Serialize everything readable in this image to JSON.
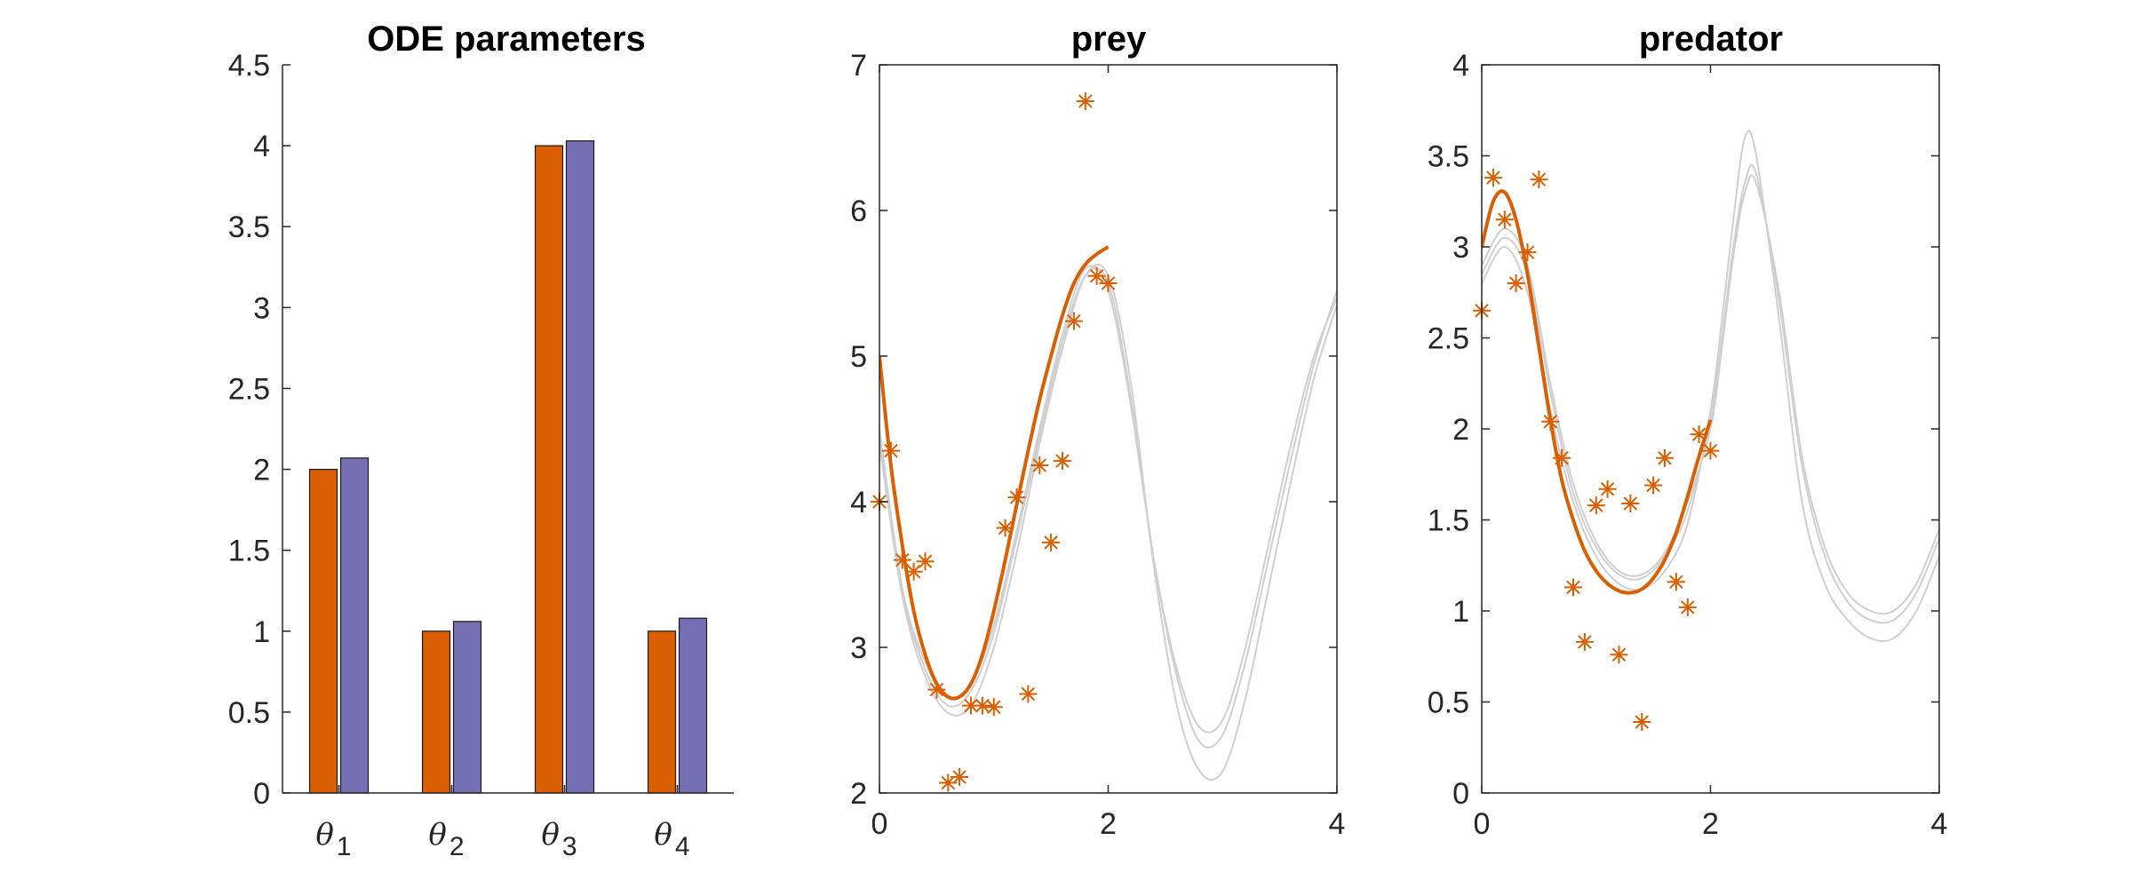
{
  "colors": {
    "true_bar": "#D95F02",
    "est_bar": "#7570B3",
    "fit": "#D95F02",
    "obs": "#D95F02",
    "samples": "#CFCFCF",
    "axis": "#262626"
  },
  "chart_data": [
    {
      "type": "bar",
      "title": "ODE parameters",
      "categories": [
        "θ1",
        "θ2",
        "θ3",
        "θ4"
      ],
      "category_symbol": "θ",
      "category_subscripts": [
        "1",
        "2",
        "3",
        "4"
      ],
      "series": [
        {
          "values": [
            2.0,
            1.0,
            4.0,
            1.0
          ]
        },
        {
          "values": [
            2.07,
            1.06,
            4.03,
            1.08
          ]
        }
      ],
      "ylim": [
        0,
        4.5
      ],
      "yticks": [
        "0",
        "0.5",
        "1",
        "1.5",
        "2",
        "2.5",
        "3",
        "3.5",
        "4",
        "4.5"
      ],
      "grid": false
    },
    {
      "type": "line",
      "title": "prey",
      "xlim": [
        0,
        4
      ],
      "ylim": [
        2,
        7
      ],
      "xticks": [
        "0",
        "2",
        "4"
      ],
      "yticks": [
        "2",
        "3",
        "4",
        "5",
        "6",
        "7"
      ],
      "grid": false,
      "series": [
        {
          "style": "fit",
          "x": [
            0,
            0.1,
            0.2,
            0.3,
            0.4,
            0.5,
            0.6,
            0.7,
            0.8,
            0.9,
            1.0,
            1.1,
            1.2,
            1.3,
            1.4,
            1.5,
            1.6,
            1.7,
            1.8,
            1.9,
            2.0
          ],
          "y": [
            5.0,
            4.25,
            3.7,
            3.25,
            2.95,
            2.75,
            2.66,
            2.66,
            2.75,
            2.95,
            3.25,
            3.6,
            3.98,
            4.35,
            4.7,
            5.0,
            5.28,
            5.5,
            5.63,
            5.7,
            5.75
          ]
        },
        {
          "style": "sample",
          "x": [
            0,
            0.2,
            0.4,
            0.6,
            0.8,
            1.0,
            1.2,
            1.4,
            1.6,
            1.8,
            2.0,
            2.2,
            2.4,
            2.6,
            2.8,
            3.0,
            3.2,
            3.4,
            3.6,
            3.8,
            4.0
          ],
          "y": [
            4.5,
            3.4,
            2.85,
            2.6,
            2.7,
            3.1,
            3.75,
            4.45,
            5.1,
            5.55,
            5.5,
            4.7,
            3.6,
            2.8,
            2.35,
            2.4,
            2.9,
            3.6,
            4.3,
            4.95,
            5.45
          ]
        },
        {
          "style": "sample",
          "x": [
            0,
            0.2,
            0.4,
            0.6,
            0.8,
            1.0,
            1.2,
            1.4,
            1.6,
            1.8,
            2.0,
            2.2,
            2.4,
            2.6,
            2.8,
            3.0,
            3.2,
            3.4,
            3.6,
            3.8,
            4.0
          ],
          "y": [
            4.4,
            3.35,
            2.8,
            2.55,
            2.6,
            3.0,
            3.65,
            4.4,
            5.05,
            5.55,
            5.55,
            4.8,
            3.55,
            2.6,
            2.15,
            2.15,
            2.65,
            3.4,
            4.15,
            4.85,
            5.35
          ]
        },
        {
          "style": "sample",
          "x": [
            0,
            0.2,
            0.4,
            0.6,
            0.8,
            1.0,
            1.2,
            1.4,
            1.6,
            1.8,
            2.0,
            2.2,
            2.4,
            2.6,
            2.8,
            3.0,
            3.2,
            3.4,
            3.6,
            3.8,
            4.0
          ],
          "y": [
            4.45,
            3.4,
            2.9,
            2.65,
            2.75,
            3.15,
            3.8,
            4.5,
            5.15,
            5.6,
            5.45,
            4.65,
            3.6,
            2.85,
            2.45,
            2.5,
            3.0,
            3.7,
            4.4,
            5.0,
            5.4
          ]
        },
        {
          "style": "obs",
          "x": [
            0,
            0.1,
            0.2,
            0.3,
            0.4,
            0.5,
            0.6,
            0.7,
            0.8,
            0.9,
            1.0,
            1.1,
            1.2,
            1.3,
            1.4,
            1.5,
            1.6,
            1.7,
            1.8,
            1.9,
            2.0
          ],
          "y": [
            4.0,
            4.35,
            3.6,
            3.52,
            3.59,
            2.71,
            2.07,
            2.11,
            2.6,
            2.6,
            2.59,
            3.82,
            4.03,
            2.68,
            4.25,
            3.72,
            4.28,
            5.24,
            6.75,
            5.55,
            5.5
          ]
        }
      ]
    },
    {
      "type": "line",
      "title": "predator",
      "xlim": [
        0,
        4
      ],
      "ylim": [
        0,
        4
      ],
      "xticks": [
        "0",
        "2",
        "4"
      ],
      "yticks": [
        "0",
        "0.5",
        "1",
        "1.5",
        "2",
        "2.5",
        "3",
        "3.5",
        "4"
      ],
      "grid": false,
      "series": [
        {
          "style": "fit",
          "x": [
            0,
            0.1,
            0.2,
            0.3,
            0.4,
            0.5,
            0.6,
            0.7,
            0.8,
            0.9,
            1.0,
            1.1,
            1.2,
            1.3,
            1.4,
            1.5,
            1.6,
            1.7,
            1.8,
            1.9,
            2.0
          ],
          "y": [
            3.0,
            3.25,
            3.3,
            3.15,
            2.85,
            2.45,
            2.05,
            1.72,
            1.5,
            1.33,
            1.22,
            1.15,
            1.11,
            1.1,
            1.12,
            1.18,
            1.28,
            1.43,
            1.63,
            1.85,
            2.05
          ]
        },
        {
          "style": "sample",
          "x": [
            0,
            0.2,
            0.4,
            0.6,
            0.8,
            1.0,
            1.2,
            1.4,
            1.6,
            1.8,
            2.0,
            2.1,
            2.2,
            2.3,
            2.4,
            2.6,
            2.8,
            3.0,
            3.2,
            3.4,
            3.6,
            3.8,
            4.0
          ],
          "y": [
            2.85,
            3.05,
            2.85,
            2.2,
            1.65,
            1.35,
            1.2,
            1.18,
            1.3,
            1.55,
            2.05,
            2.5,
            3.0,
            3.35,
            3.4,
            2.7,
            1.8,
            1.3,
            1.05,
            0.95,
            0.95,
            1.1,
            1.4
          ]
        },
        {
          "style": "sample",
          "x": [
            0,
            0.2,
            0.4,
            0.6,
            0.8,
            1.0,
            1.2,
            1.4,
            1.6,
            1.8,
            2.0,
            2.1,
            2.2,
            2.3,
            2.4,
            2.6,
            2.8,
            3.0,
            3.2,
            3.4,
            3.6,
            3.8,
            4.0
          ],
          "y": [
            2.8,
            3.0,
            2.75,
            2.1,
            1.6,
            1.3,
            1.15,
            1.12,
            1.22,
            1.48,
            2.1,
            2.6,
            3.15,
            3.6,
            3.5,
            2.6,
            1.6,
            1.15,
            0.95,
            0.85,
            0.85,
            1.0,
            1.3
          ]
        },
        {
          "style": "sample",
          "x": [
            0,
            0.2,
            0.4,
            0.6,
            0.8,
            1.0,
            1.2,
            1.4,
            1.6,
            1.8,
            2.0,
            2.1,
            2.2,
            2.3,
            2.4,
            2.6,
            2.8,
            3.0,
            3.2,
            3.4,
            3.6,
            3.8,
            4.0
          ],
          "y": [
            2.9,
            3.1,
            2.9,
            2.25,
            1.7,
            1.38,
            1.22,
            1.2,
            1.32,
            1.6,
            2.0,
            2.45,
            2.95,
            3.3,
            3.35,
            2.75,
            1.85,
            1.35,
            1.1,
            1.0,
            1.0,
            1.15,
            1.45
          ]
        },
        {
          "style": "obs",
          "x": [
            0,
            0.1,
            0.2,
            0.3,
            0.4,
            0.5,
            0.6,
            0.7,
            0.8,
            0.9,
            1.0,
            1.1,
            1.2,
            1.3,
            1.4,
            1.5,
            1.6,
            1.7,
            1.8,
            1.9,
            2.0
          ],
          "y": [
            2.65,
            3.38,
            3.15,
            2.8,
            2.97,
            3.37,
            2.04,
            1.84,
            1.13,
            0.83,
            1.58,
            1.67,
            0.76,
            1.59,
            0.39,
            1.69,
            1.84,
            1.16,
            1.02,
            1.97,
            1.88
          ]
        }
      ]
    }
  ]
}
